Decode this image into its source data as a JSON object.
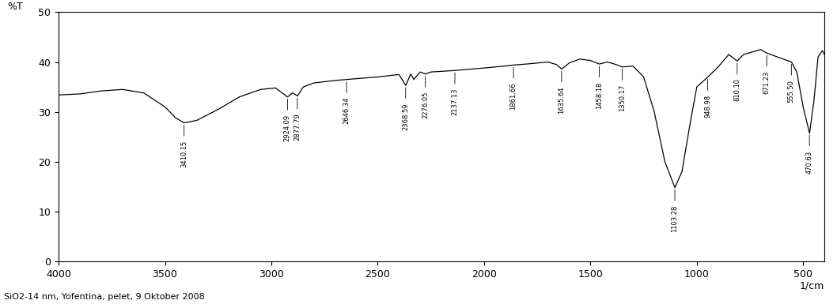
{
  "chart_data": {
    "type": "line",
    "x_label": "1/cm",
    "y_label": "%T",
    "caption": "SiO2-14 nm, Yofentina, pelet, 9 Oktober 2008",
    "x": [
      4000,
      3900,
      3800,
      3700,
      3600,
      3500,
      3450,
      3410,
      3350,
      3250,
      3150,
      3050,
      2980,
      2924,
      2900,
      2877,
      2850,
      2800,
      2700,
      2646,
      2500,
      2400,
      2368,
      2345,
      2330,
      2300,
      2276,
      2250,
      2137,
      2000,
      1900,
      1861,
      1800,
      1700,
      1660,
      1635,
      1600,
      1550,
      1500,
      1458,
      1420,
      1380,
      1350,
      1300,
      1250,
      1200,
      1150,
      1103,
      1070,
      1030,
      1000,
      948,
      900,
      850,
      810,
      780,
      700,
      671,
      620,
      555,
      530,
      500,
      470,
      450,
      430,
      410,
      400
    ],
    "values": [
      33.4,
      33.6,
      34.2,
      34.5,
      33.8,
      31.0,
      28.8,
      27.8,
      28.3,
      30.5,
      33.0,
      34.5,
      34.8,
      33.0,
      33.8,
      33.2,
      35.0,
      35.8,
      36.3,
      36.5,
      37.0,
      37.5,
      35.3,
      37.6,
      36.5,
      38.0,
      37.6,
      38.0,
      38.3,
      38.8,
      39.2,
      39.4,
      39.6,
      40.0,
      39.5,
      38.6,
      39.8,
      40.6,
      40.3,
      39.6,
      40.0,
      39.5,
      39.0,
      39.2,
      37.0,
      30.0,
      20.0,
      14.8,
      18.0,
      28.0,
      35.0,
      37.0,
      39.0,
      41.5,
      40.2,
      41.5,
      42.5,
      41.8,
      41.0,
      40.0,
      38.0,
      31.0,
      25.7,
      32.0,
      41.0,
      42.3,
      41.5
    ],
    "color": "#000000",
    "annotations": [
      {
        "value": 3410.15,
        "label": "3410.15"
      },
      {
        "value": 2924.09,
        "label": "2924.09"
      },
      {
        "value": 2877.79,
        "label": "2877.79"
      },
      {
        "value": 2646.34,
        "label": "2646.34"
      },
      {
        "value": 2368.59,
        "label": "2368.59"
      },
      {
        "value": 2276.05,
        "label": "2276.05"
      },
      {
        "value": 2137.13,
        "label": "2137.13"
      },
      {
        "value": 1861.66,
        "label": "1861.66"
      },
      {
        "value": 1635.64,
        "label": "1635.64"
      },
      {
        "value": 1458.18,
        "label": "1458.18"
      },
      {
        "value": 1350.17,
        "label": "1350.17"
      },
      {
        "value": 1103.28,
        "label": "1103.28"
      },
      {
        "value": 948.98,
        "label": "948.98"
      },
      {
        "value": 810.1,
        "label": "810.10"
      },
      {
        "value": 671.23,
        "label": "671.23"
      },
      {
        "value": 555.5,
        "label": "555.50"
      },
      {
        "value": 470.63,
        "label": "470.63"
      }
    ],
    "xlim": [
      4000,
      400
    ],
    "xticks": [
      4000,
      3500,
      3000,
      2500,
      2000,
      1500,
      1000,
      500
    ],
    "ylim": [
      0,
      50
    ],
    "yticks": [
      0,
      10,
      20,
      30,
      40,
      50
    ],
    "grid": false
  }
}
